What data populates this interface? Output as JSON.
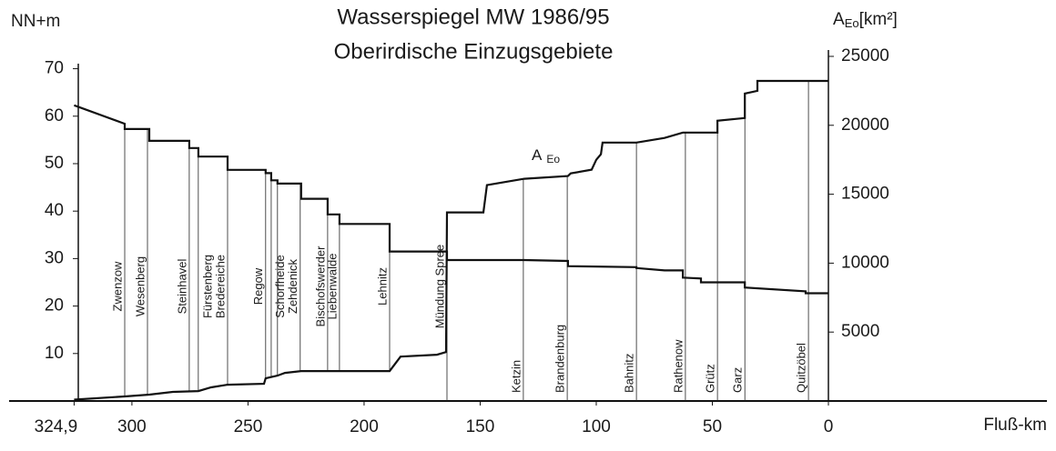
{
  "chart_data": {
    "type": "line",
    "title": "Wasserspiegel MW 1986/95",
    "subtitle": "Oberirdische Einzugsgebiete",
    "ylabel": "NN+m",
    "y2label": {
      "main": "A",
      "sub": "Eo",
      "unit": "[km²]"
    },
    "xlabel": "Fluß-km",
    "annotation": {
      "main": "A",
      "sub": "Eo"
    },
    "xlim": [
      352.9,
      -94.1
    ],
    "xticks": [
      {
        "value": 324.9,
        "label": "324,9"
      },
      300,
      250,
      200,
      150,
      100,
      50,
      0
    ],
    "ylim": [
      0,
      72.6
    ],
    "yticks": [
      10,
      20,
      30,
      40,
      50,
      60,
      70
    ],
    "y2lim": [
      0,
      25000
    ],
    "y2ticks": [
      5000,
      10000,
      15000,
      20000,
      25000
    ],
    "series": [
      {
        "name": "Wasserspiegel",
        "color": "#111111",
        "axis": "y",
        "x": [
          324.9,
          303.1,
          303.1,
          292.5,
          292.5,
          275.3,
          275.3,
          271.4,
          271.4,
          258.8,
          258.8,
          242.4,
          242.4,
          240,
          240,
          237.3,
          237.3,
          227.1,
          227.1,
          215.7,
          215.7,
          210.6,
          210.6,
          189,
          189,
          164.3,
          164.3,
          131,
          112.2,
          112.2,
          82.7,
          82.7,
          70.6,
          62.7,
          62.7,
          54.9,
          54.9,
          36,
          36,
          9.8,
          9.8,
          0
        ],
        "values": [
          62.3,
          58.4,
          57.3,
          57.3,
          54.8,
          54.8,
          53.3,
          53.3,
          51.5,
          51.5,
          48.7,
          48.7,
          48.0,
          48.0,
          46.5,
          46.5,
          45.8,
          45.8,
          42.6,
          42.6,
          39.3,
          39.3,
          37.3,
          37.3,
          31.5,
          31.5,
          29.7,
          29.7,
          29.5,
          28.4,
          28.2,
          28.0,
          27.5,
          27.5,
          26.0,
          25.8,
          25.0,
          25.0,
          23.9,
          23.1,
          22.7,
          22.7
        ]
      },
      {
        "name": "A Eo",
        "color": "#111111",
        "axis": "y2",
        "x": [
          324.9,
          303.1,
          292.5,
          282.4,
          271.4,
          265.9,
          258.8,
          243.1,
          242.4,
          237.3,
          234.1,
          227.1,
          189,
          184.3,
          168.6,
          164.7,
          164.3,
          148.6,
          147.1,
          131,
          112.2,
          111,
          102,
          100,
          98,
          97.3,
          82.7,
          70.6,
          62.7,
          47.8,
          47.8,
          36,
          36,
          30.6,
          30.6,
          0
        ],
        "values": [
          100,
          330,
          460,
          660,
          720,
          990,
          1180,
          1250,
          1640,
          1840,
          2040,
          2170,
          2170,
          3220,
          3360,
          3550,
          13680,
          13680,
          15660,
          16120,
          16320,
          16510,
          16780,
          17500,
          17900,
          18750,
          18750,
          19080,
          19470,
          19470,
          20330,
          20530,
          22300,
          22500,
          23220,
          23220
        ]
      }
    ],
    "stations": [
      {
        "km": 303.1,
        "name": [
          "Zwenzow"
        ]
      },
      {
        "km": 293.3,
        "name": [
          "Wesenberg"
        ]
      },
      {
        "km": 275.3,
        "name": [
          "Steinhavel"
        ]
      },
      {
        "km": 271.4,
        "name": null
      },
      {
        "km": 258.8,
        "name": [
          "Fürstenberg",
          "Bredereiche"
        ]
      },
      {
        "km": 242.4,
        "name": [
          "Regow"
        ]
      },
      {
        "km": 240,
        "name": null
      },
      {
        "km": 237.3,
        "name": null
      },
      {
        "km": 227.5,
        "name": [
          "Schorfheide",
          "Zehdenick"
        ]
      },
      {
        "km": 215.7,
        "name": [
          "Bischofswerder"
        ]
      },
      {
        "km": 210.6,
        "name": [
          "Liebenwalde"
        ]
      },
      {
        "km": 189,
        "name": [
          "Lehnitz"
        ]
      },
      {
        "km": 164.3,
        "name": [
          "Mündung   Spree"
        ]
      },
      {
        "km": 131.4,
        "name": [
          "Ketzin"
        ]
      },
      {
        "km": 112.5,
        "name": [
          "Brandenburg"
        ]
      },
      {
        "km": 82.7,
        "name": [
          "Bahnitz"
        ]
      },
      {
        "km": 61.6,
        "name": [
          "Rathenow"
        ]
      },
      {
        "km": 47.8,
        "name": [
          "Grütz"
        ]
      },
      {
        "km": 36,
        "name": [
          "Garz"
        ]
      },
      {
        "km": 8.6,
        "name": [
          "Quitzöbel"
        ]
      }
    ]
  }
}
